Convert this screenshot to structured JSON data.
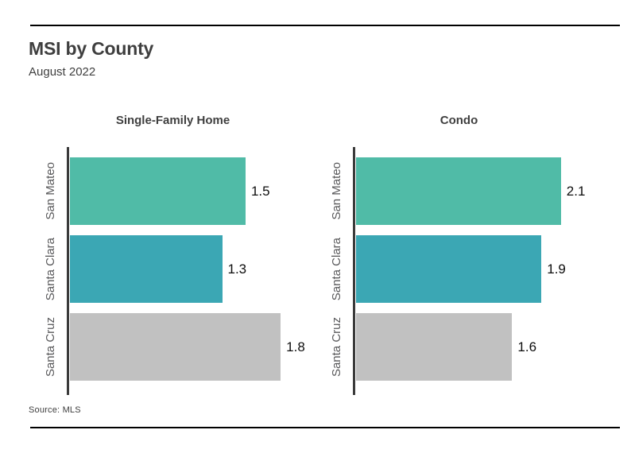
{
  "page": {
    "title": "MSI by County",
    "subtitle": "August 2022",
    "source": "Source:  MLS"
  },
  "chart_data": {
    "type": "bar",
    "orientation": "horizontal",
    "title": "MSI by County",
    "subtitle": "August 2022",
    "source_note": "Source:  MLS",
    "categories": [
      "San Mateo",
      "Santa Clara",
      "Santa Cruz"
    ],
    "panels": [
      {
        "label": "Single-Family Home",
        "values": [
          1.5,
          1.3,
          1.8
        ],
        "xmax": 2.05
      },
      {
        "label": "Condo",
        "values": [
          2.1,
          1.9,
          1.6
        ],
        "xmax": 2.46
      }
    ],
    "bar_colors": [
      "#50bba7",
      "#3ba7b4",
      "#c1c1c1"
    ],
    "axis_spine_color": "#3a3a3a",
    "value_labels_shown": true,
    "grid": false,
    "legend": "none"
  }
}
